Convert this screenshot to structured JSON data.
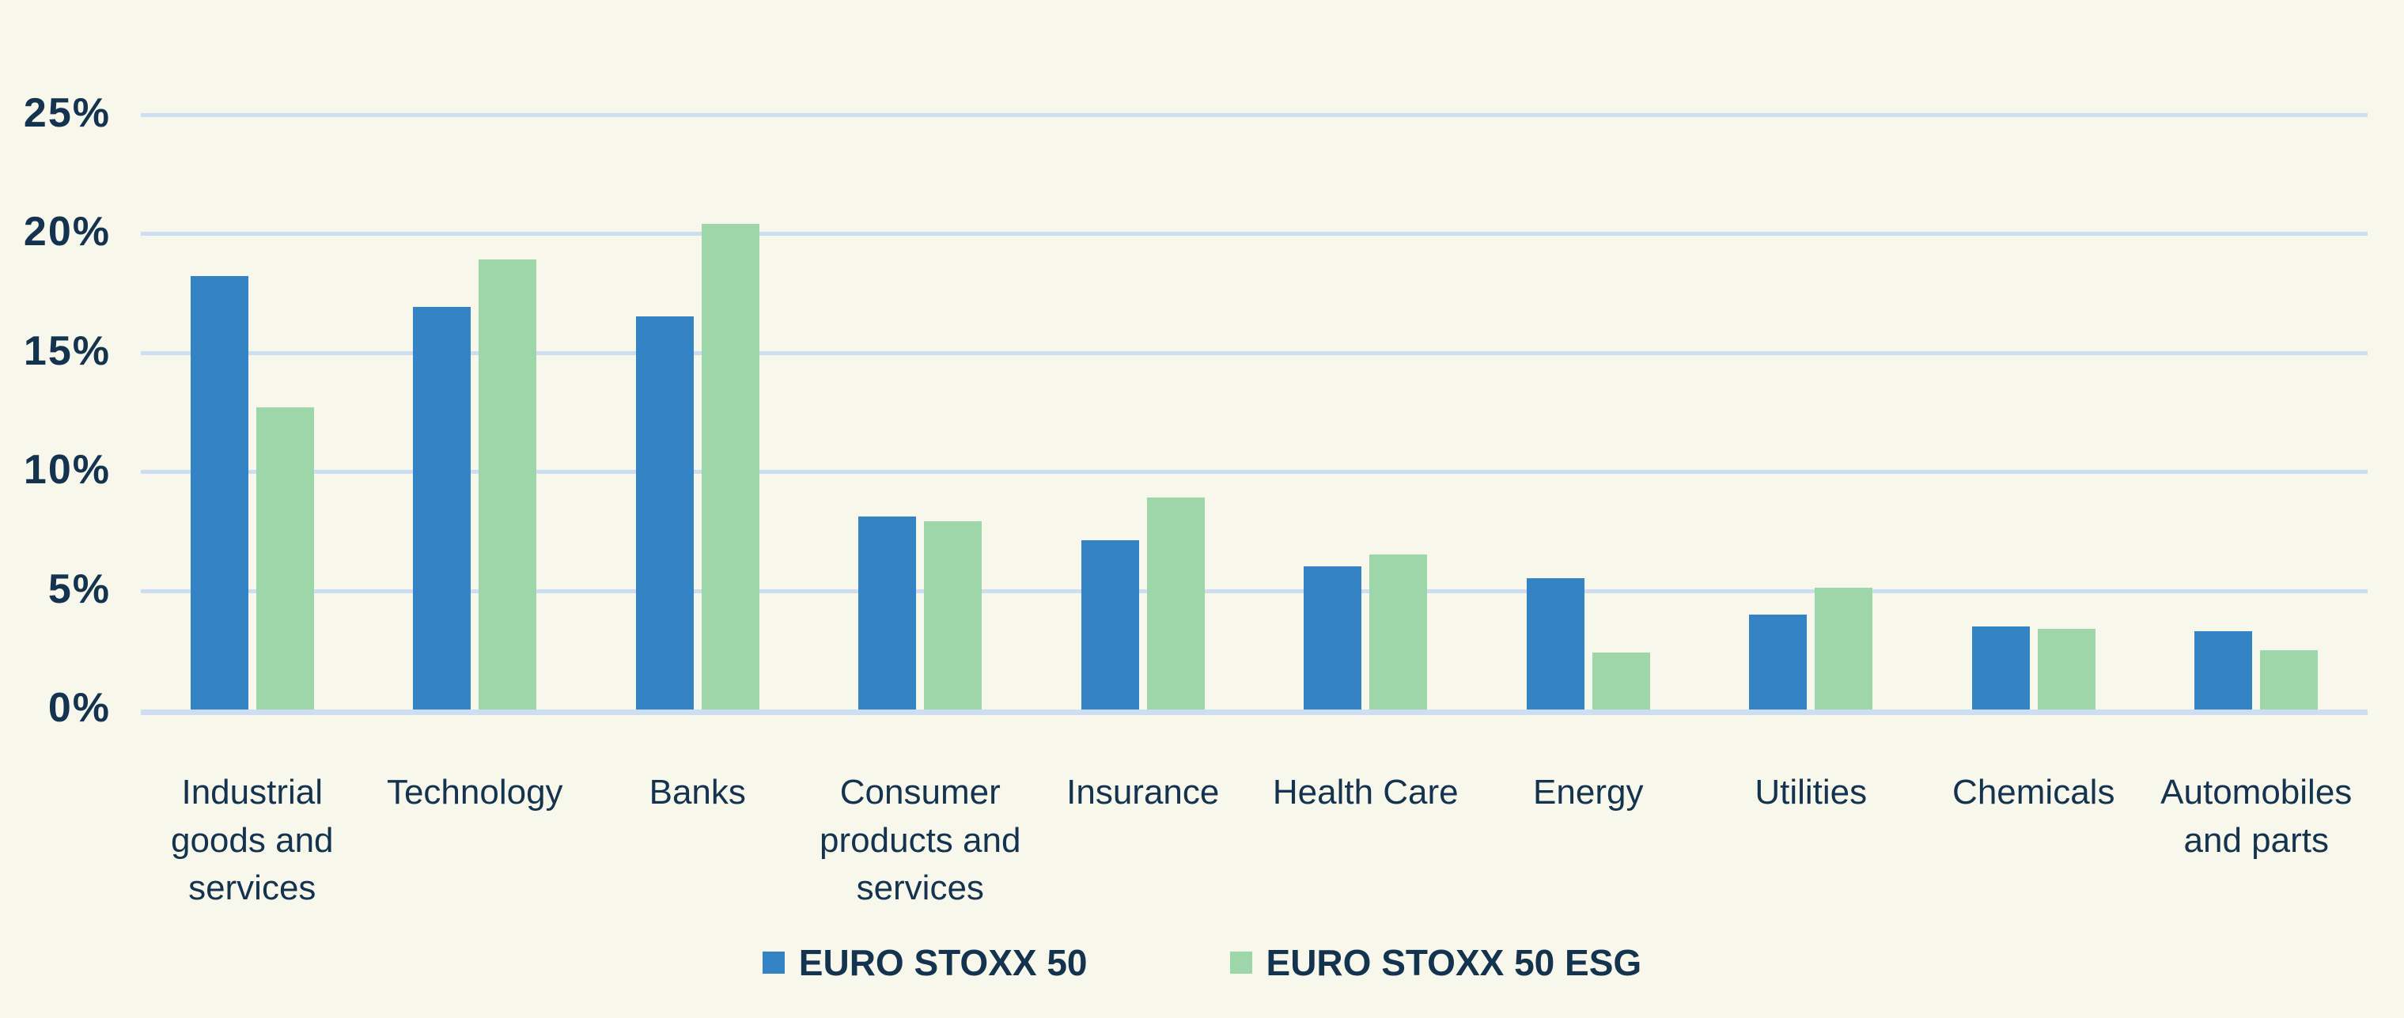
{
  "chart_data": {
    "type": "bar",
    "title": "",
    "categories": [
      "Industrial goods and services",
      "Technology",
      "Banks",
      "Consumer products and services",
      "Insurance",
      "Health Care",
      "Energy",
      "Utilities",
      "Chemicals",
      "Automobiles and parts"
    ],
    "series": [
      {
        "name": "EURO STOXX 50",
        "color": "#3383C5",
        "values": [
          18.2,
          16.9,
          16.5,
          8.1,
          7.1,
          6.0,
          5.5,
          4.0,
          3.5,
          3.3
        ]
      },
      {
        "name": "EURO STOXX 50 ESG",
        "color": "#9DD7A9",
        "values": [
          12.7,
          18.9,
          20.4,
          7.9,
          8.9,
          6.5,
          2.4,
          5.1,
          3.4,
          2.5
        ]
      }
    ],
    "xlabel": "",
    "ylabel": "",
    "ylim": [
      0,
      25
    ],
    "y_tick_step": 5,
    "y_tick_labels": [
      "0%",
      "5%",
      "10%",
      "15%",
      "20%",
      "25%"
    ],
    "grid": true,
    "legend_position": "bottom-center"
  },
  "colors": {
    "background": "#F8F7EC",
    "gridline": "#CDDDF2",
    "axis_text": "#14334F",
    "bar_blue": "#3383C5",
    "bar_green": "#9DD7A9"
  }
}
